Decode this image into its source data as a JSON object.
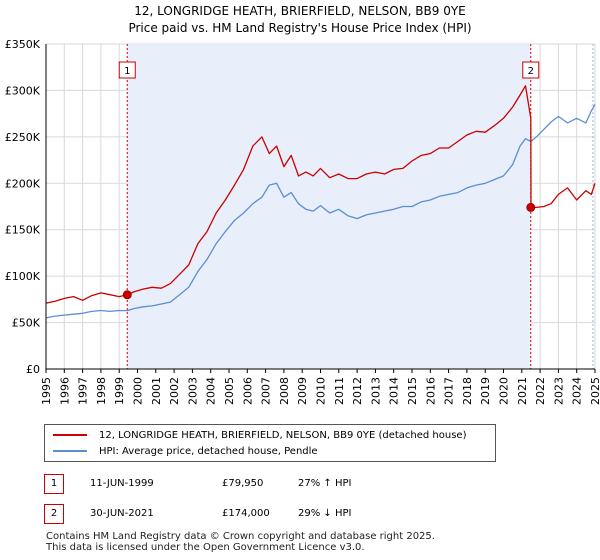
{
  "chart_data": {
    "type": "line",
    "title": "12, LONGRIDGE HEATH, BRIERFIELD, NELSON, BB9 0YE",
    "subtitle": "Price paid vs. HM Land Registry's House Price Index (HPI)",
    "xlim": [
      1995,
      2025
    ],
    "ylim": [
      0,
      350000
    ],
    "x_ticks": [
      "1995",
      "1996",
      "1997",
      "1998",
      "1999",
      "2000",
      "2001",
      "2002",
      "2003",
      "2004",
      "2005",
      "2006",
      "2007",
      "2008",
      "2009",
      "2010",
      "2011",
      "2012",
      "2013",
      "2014",
      "2015",
      "2016",
      "2017",
      "2018",
      "2019",
      "2020",
      "2021",
      "2022",
      "2023",
      "2024",
      "2025"
    ],
    "y_ticks": [
      {
        "value": 0,
        "label": "£0"
      },
      {
        "value": 50000,
        "label": "£50K"
      },
      {
        "value": 100000,
        "label": "£100K"
      },
      {
        "value": 150000,
        "label": "£150K"
      },
      {
        "value": 200000,
        "label": "£200K"
      },
      {
        "value": 250000,
        "label": "£250K"
      },
      {
        "value": 300000,
        "label": "£300K"
      },
      {
        "value": 350000,
        "label": "£350K"
      }
    ],
    "shaded_range": [
      1999.44,
      2021.5
    ],
    "series": [
      {
        "name": "12, LONGRIDGE HEATH, BRIERFIELD, NELSON, BB9 0YE (detached house)",
        "color": "#cc0000",
        "x": [
          1995.0,
          1995.5,
          1996.0,
          1996.5,
          1997.0,
          1997.5,
          1998.0,
          1998.5,
          1999.0,
          1999.44,
          1999.8,
          2000.3,
          2000.8,
          2001.3,
          2001.8,
          2002.3,
          2002.8,
          2003.3,
          2003.8,
          2004.3,
          2004.8,
          2005.3,
          2005.8,
          2006.3,
          2006.8,
          2007.2,
          2007.6,
          2008.0,
          2008.4,
          2008.8,
          2009.2,
          2009.6,
          2010.0,
          2010.5,
          2011.0,
          2011.5,
          2012.0,
          2012.5,
          2013.0,
          2013.5,
          2014.0,
          2014.5,
          2015.0,
          2015.5,
          2016.0,
          2016.5,
          2017.0,
          2017.5,
          2018.0,
          2018.5,
          2019.0,
          2019.5,
          2020.0,
          2020.5,
          2020.9,
          2021.2,
          2021.49,
          2021.5,
          2021.8,
          2022.2,
          2022.6,
          2023.0,
          2023.5,
          2024.0,
          2024.5,
          2024.8,
          2025.0
        ],
        "values": [
          71000,
          73000,
          76000,
          78000,
          74000,
          79000,
          82000,
          80000,
          78000,
          79950,
          83000,
          86000,
          88000,
          87000,
          92000,
          102000,
          112000,
          135000,
          148000,
          168000,
          182000,
          198000,
          215000,
          240000,
          250000,
          232000,
          240000,
          218000,
          230000,
          208000,
          212000,
          208000,
          216000,
          206000,
          210000,
          205000,
          205000,
          210000,
          212000,
          210000,
          215000,
          216000,
          224000,
          230000,
          232000,
          238000,
          238000,
          245000,
          252000,
          256000,
          255000,
          262000,
          270000,
          282000,
          295000,
          305000,
          270000,
          174000,
          174000,
          175000,
          178000,
          188000,
          195000,
          182000,
          192000,
          188000,
          200000
        ]
      },
      {
        "name": "HPI: Average price, detached house, Pendle",
        "color": "#5b8fd0",
        "x": [
          1995.0,
          1995.5,
          1996.0,
          1996.5,
          1997.0,
          1997.5,
          1998.0,
          1998.5,
          1999.0,
          1999.44,
          1999.8,
          2000.3,
          2000.8,
          2001.3,
          2001.8,
          2002.3,
          2002.8,
          2003.3,
          2003.8,
          2004.3,
          2004.8,
          2005.3,
          2005.8,
          2006.3,
          2006.8,
          2007.2,
          2007.6,
          2008.0,
          2008.4,
          2008.8,
          2009.2,
          2009.6,
          2010.0,
          2010.5,
          2011.0,
          2011.5,
          2012.0,
          2012.5,
          2013.0,
          2013.5,
          2014.0,
          2014.5,
          2015.0,
          2015.5,
          2016.0,
          2016.5,
          2017.0,
          2017.5,
          2018.0,
          2018.5,
          2019.0,
          2019.5,
          2020.0,
          2020.5,
          2020.9,
          2021.2,
          2021.5,
          2021.8,
          2022.2,
          2022.6,
          2023.0,
          2023.5,
          2024.0,
          2024.5,
          2024.8,
          2025.0
        ],
        "values": [
          55000,
          57000,
          58000,
          59000,
          60000,
          62000,
          63000,
          62000,
          63000,
          62900,
          65000,
          67000,
          68000,
          70000,
          72000,
          80000,
          88000,
          105000,
          118000,
          135000,
          148000,
          160000,
          168000,
          178000,
          185000,
          198000,
          200000,
          185000,
          190000,
          178000,
          172000,
          170000,
          176000,
          168000,
          172000,
          165000,
          162000,
          166000,
          168000,
          170000,
          172000,
          175000,
          175000,
          180000,
          182000,
          186000,
          188000,
          190000,
          195000,
          198000,
          200000,
          204000,
          208000,
          220000,
          240000,
          248000,
          245000,
          250000,
          258000,
          266000,
          272000,
          265000,
          270000,
          265000,
          278000,
          285000
        ]
      }
    ],
    "markers": [
      {
        "label": "1",
        "x": 1999.44,
        "y": 79950
      },
      {
        "label": "2",
        "x": 2021.49,
        "y": 174000
      }
    ]
  },
  "legend": {
    "items": [
      {
        "label": "12, LONGRIDGE HEATH, BRIERFIELD, NELSON, BB9 0YE (detached house)",
        "color": "#cc0000"
      },
      {
        "label": "HPI: Average price, detached house, Pendle",
        "color": "#5b8fd0"
      }
    ]
  },
  "transactions": [
    {
      "badge": "1",
      "date": "11-JUN-1999",
      "price": "£79,950",
      "hpi": "27% ↑ HPI"
    },
    {
      "badge": "2",
      "date": "30-JUN-2021",
      "price": "£174,000",
      "hpi": "29% ↓ HPI"
    }
  ],
  "footer": {
    "line1": "Contains HM Land Registry data © Crown copyright and database right 2025.",
    "line2": "This data is licensed under the Open Government Licence v3.0."
  }
}
